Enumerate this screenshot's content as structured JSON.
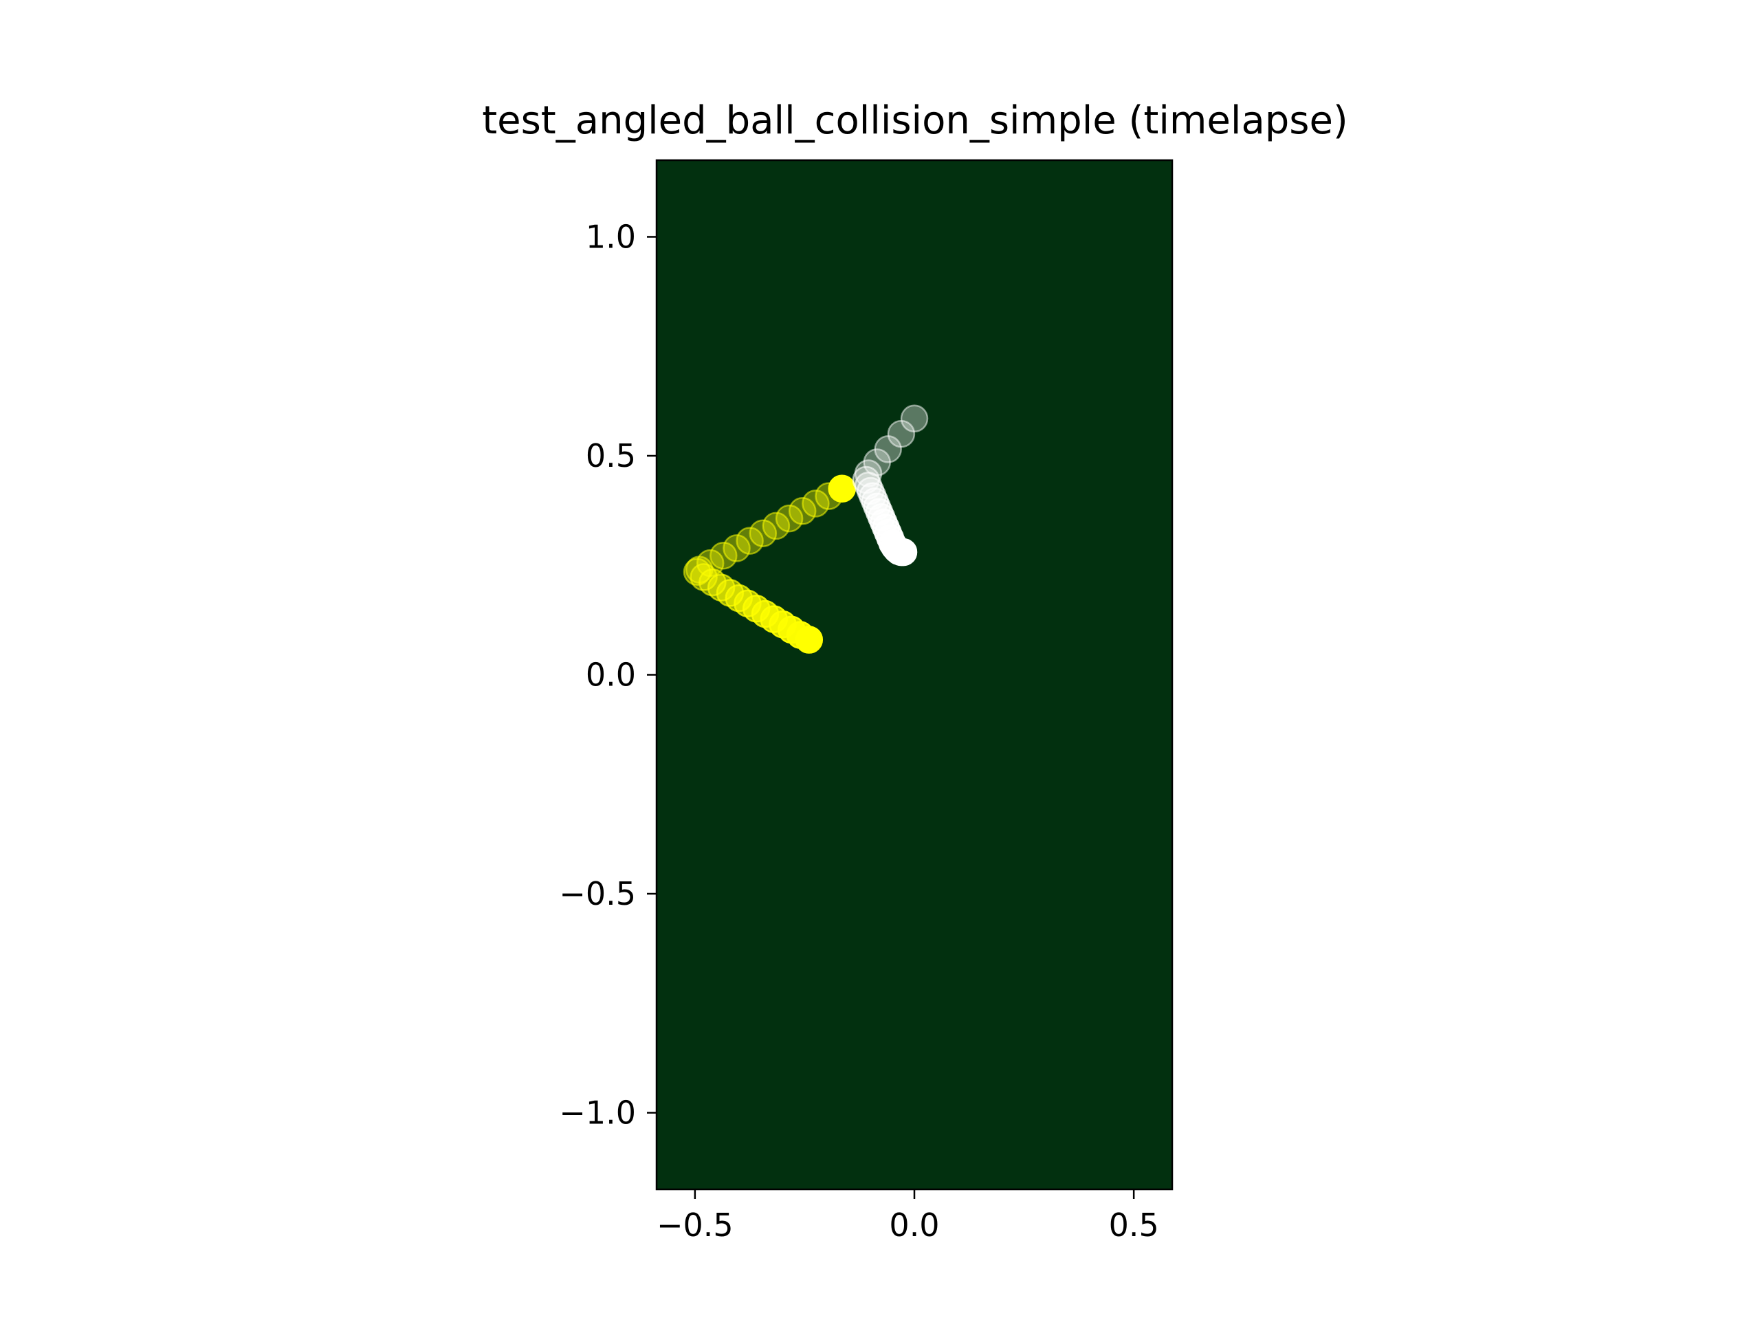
{
  "chart_data": {
    "type": "scatter",
    "title": "test_angled_ball_collision_simple (timelapse)",
    "xlabel": "",
    "ylabel": "",
    "xlim": [
      -0.5875,
      0.5875
    ],
    "ylim": [
      -1.175,
      1.175
    ],
    "xticks": [
      -0.5,
      0.0,
      0.5
    ],
    "yticks": [
      -1.0,
      -0.5,
      0.0,
      0.5,
      1.0
    ],
    "xtick_labels": [
      "−0.5",
      "0.0",
      "0.5"
    ],
    "ytick_labels": [
      "−1.0",
      "−0.5",
      "0.0",
      "0.5",
      "1.0"
    ],
    "grid": false,
    "legend": "none",
    "colors": {
      "background": "#02300f",
      "ball_yellow": "#ffff00",
      "ball_white": "#ffffff"
    },
    "series": [
      {
        "color": "#ffff00",
        "x": [
          -0.165,
          -0.195,
          -0.225,
          -0.255,
          -0.285,
          -0.315,
          -0.345,
          -0.375,
          -0.405,
          -0.435,
          -0.465,
          -0.49,
          -0.495,
          -0.48,
          -0.46,
          -0.44,
          -0.42,
          -0.4,
          -0.38,
          -0.36,
          -0.34,
          -0.32,
          -0.3,
          -0.28,
          -0.26,
          -0.24
        ],
        "y": [
          0.425,
          0.408,
          0.391,
          0.374,
          0.357,
          0.34,
          0.323,
          0.306,
          0.289,
          0.272,
          0.255,
          0.24,
          0.235,
          0.223,
          0.211,
          0.199,
          0.187,
          0.175,
          0.163,
          0.151,
          0.139,
          0.127,
          0.115,
          0.103,
          0.091,
          0.08
        ],
        "alpha": [
          1.0,
          0.38,
          0.38,
          0.38,
          0.38,
          0.38,
          0.38,
          0.38,
          0.38,
          0.38,
          0.38,
          0.38,
          0.4,
          0.44,
          0.48,
          0.52,
          0.56,
          0.6,
          0.64,
          0.68,
          0.72,
          0.76,
          0.8,
          0.86,
          0.92,
          1.0
        ]
      },
      {
        "color": "#ffffff",
        "x": [
          0.0,
          -0.03,
          -0.06,
          -0.085,
          -0.105,
          -0.11,
          -0.105,
          -0.1,
          -0.095,
          -0.09,
          -0.085,
          -0.08,
          -0.075,
          -0.07,
          -0.065,
          -0.06,
          -0.055,
          -0.05,
          -0.045,
          -0.04,
          -0.035,
          -0.03,
          -0.025
        ],
        "y": [
          0.585,
          0.55,
          0.515,
          0.485,
          0.46,
          0.445,
          0.432,
          0.42,
          0.408,
          0.396,
          0.384,
          0.372,
          0.36,
          0.348,
          0.336,
          0.324,
          0.312,
          0.3,
          0.292,
          0.286,
          0.282,
          0.28,
          0.28
        ],
        "alpha": [
          0.35,
          0.35,
          0.35,
          0.35,
          0.38,
          0.42,
          0.45,
          0.48,
          0.52,
          0.55,
          0.58,
          0.62,
          0.65,
          0.68,
          0.72,
          0.76,
          0.8,
          0.84,
          0.88,
          0.92,
          0.95,
          0.98,
          1.0
        ]
      }
    ]
  }
}
